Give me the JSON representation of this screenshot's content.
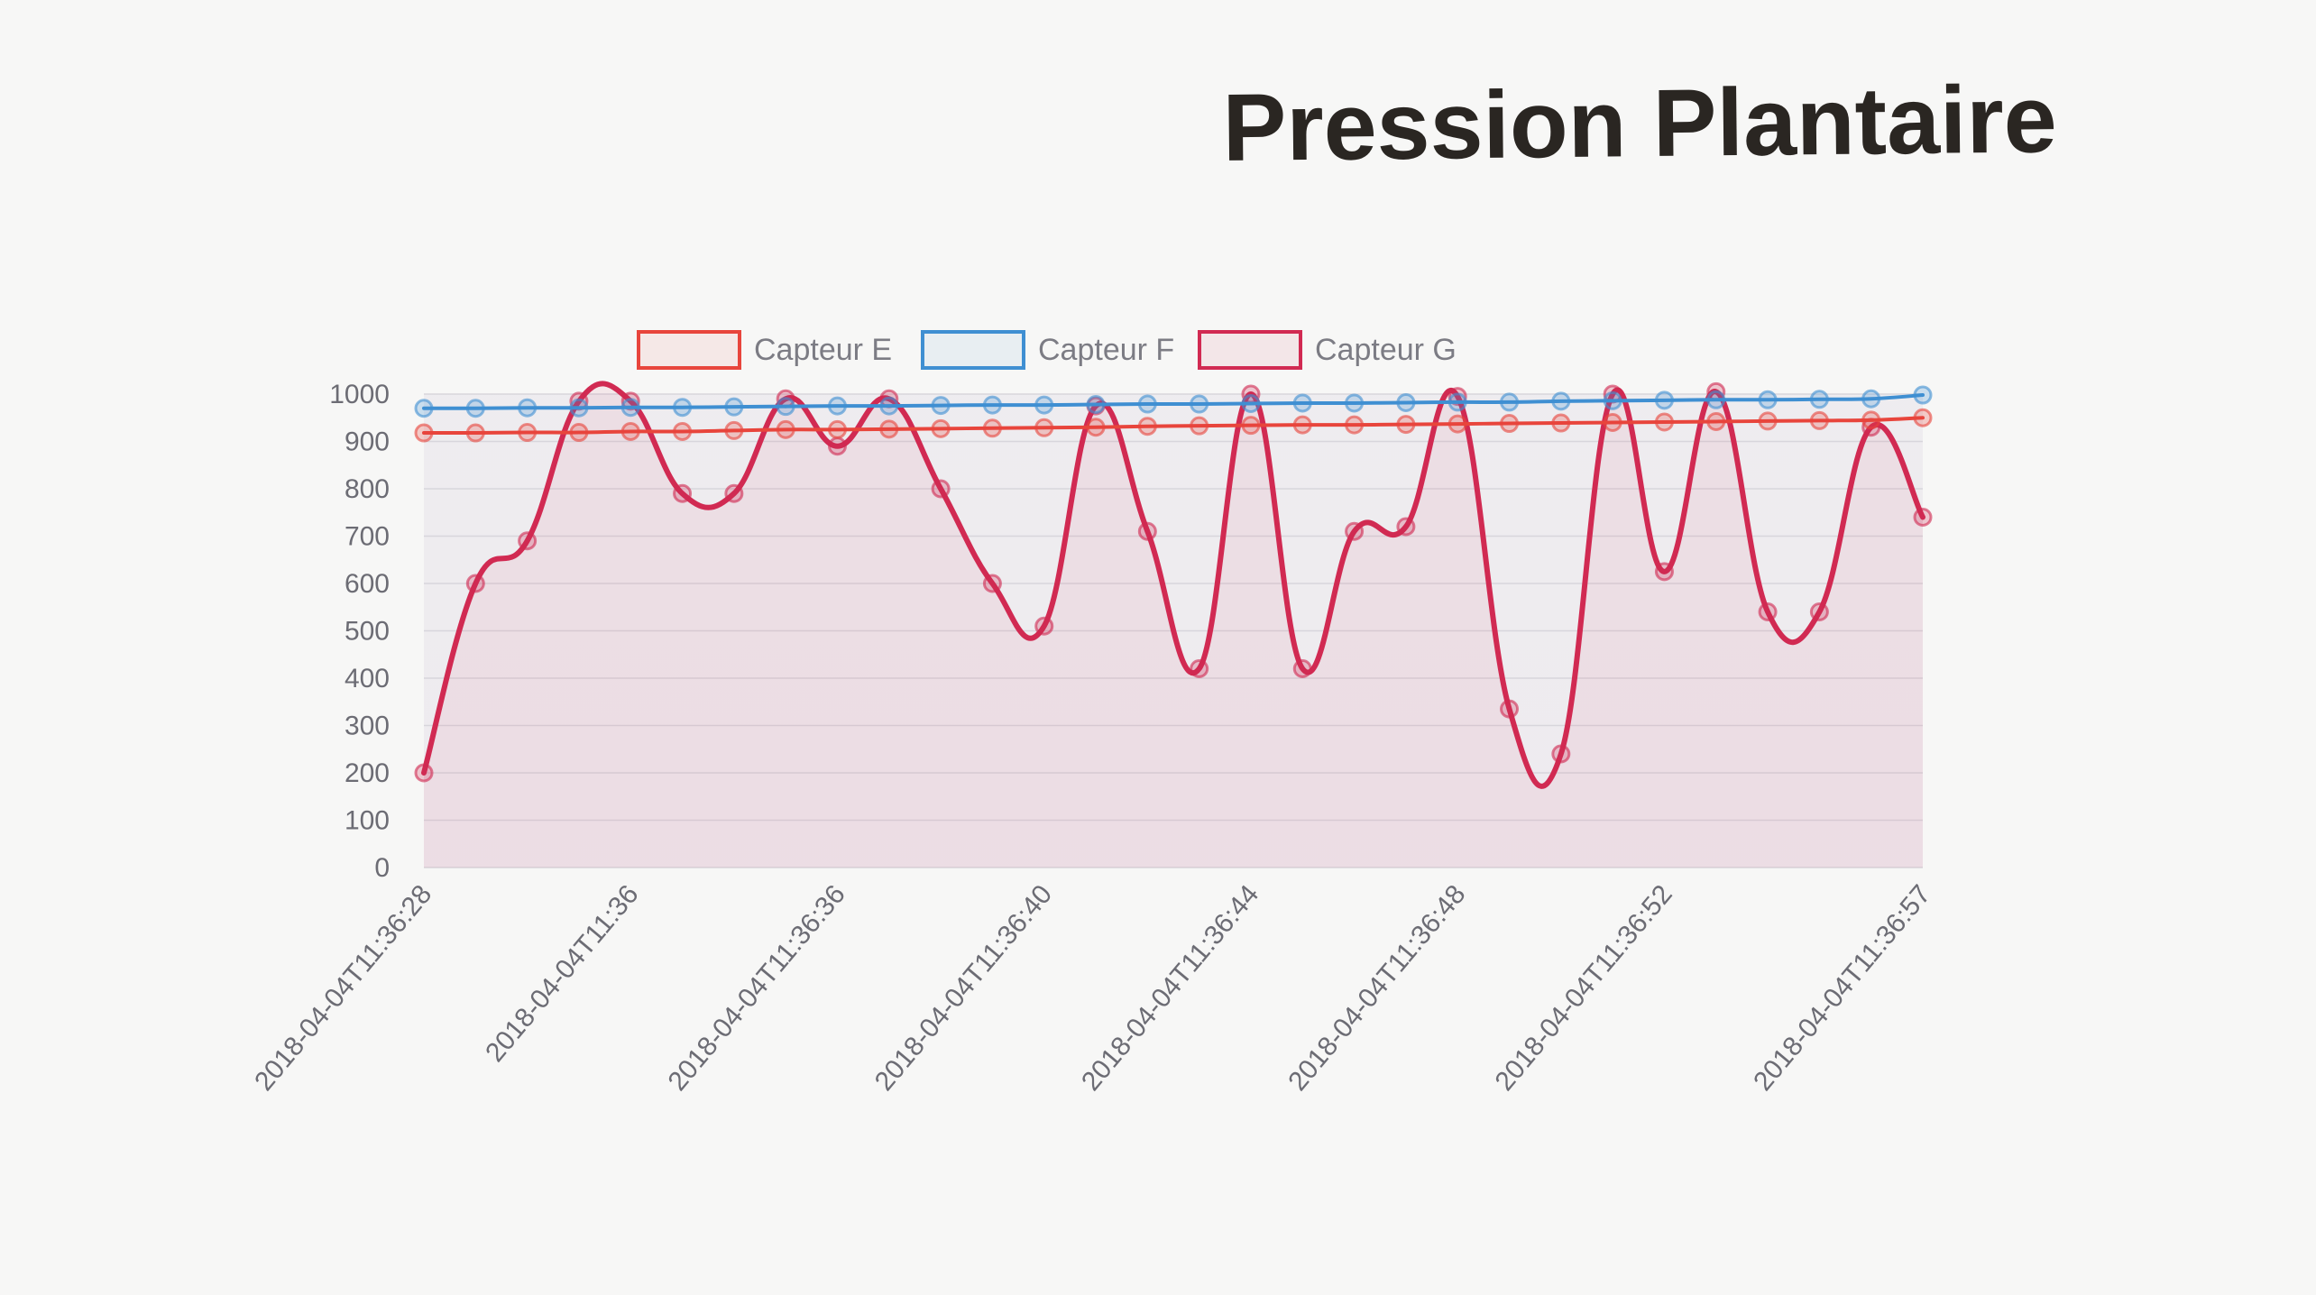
{
  "title": "Pression Plantaire",
  "chart_data": {
    "type": "line",
    "title": "Pression Plantaire",
    "xlabel": "",
    "ylabel": "",
    "ylim": [
      0,
      1000
    ],
    "y_ticks": [
      0,
      100,
      200,
      300,
      400,
      500,
      600,
      700,
      800,
      900,
      1000
    ],
    "grid": true,
    "legend": "top-center",
    "x_tick_labels": [
      "2018-04-04T11:36:28",
      "2018-04-04T11:36",
      "2018-04-04T11:36:36",
      "2018-04-04T11:36:40",
      "2018-04-04T11:36:44",
      "2018-04-04T11:36:48",
      "2018-04-04T11:36:52",
      "2018-04-04T11:36:57"
    ],
    "x_tick_indices": [
      0,
      4,
      8,
      12,
      16,
      20,
      24,
      29
    ],
    "point_count": 30,
    "series": [
      {
        "name": "Capteur E",
        "color": "#e8453c",
        "fill": false,
        "values": [
          918,
          918,
          919,
          919,
          921,
          921,
          923,
          925,
          925,
          926,
          927,
          928,
          929,
          930,
          932,
          933,
          934,
          935,
          935,
          936,
          937,
          938,
          939,
          940,
          941,
          942,
          943,
          944,
          945,
          950
        ]
      },
      {
        "name": "Capteur F",
        "color": "#3f8fd2",
        "fill": false,
        "values": [
          970,
          970,
          971,
          971,
          972,
          972,
          973,
          974,
          975,
          975,
          976,
          977,
          977,
          978,
          979,
          979,
          980,
          981,
          981,
          982,
          983,
          983,
          985,
          986,
          987,
          988,
          988,
          989,
          990,
          998
        ]
      },
      {
        "name": "Capteur G",
        "color": "#d12a52",
        "fill": true,
        "values": [
          200,
          600,
          690,
          985,
          985,
          790,
          790,
          990,
          890,
          990,
          800,
          600,
          510,
          975,
          710,
          420,
          1000,
          420,
          710,
          720,
          995,
          335,
          240,
          1000,
          625,
          1005,
          540,
          540,
          930,
          740
        ]
      }
    ]
  }
}
